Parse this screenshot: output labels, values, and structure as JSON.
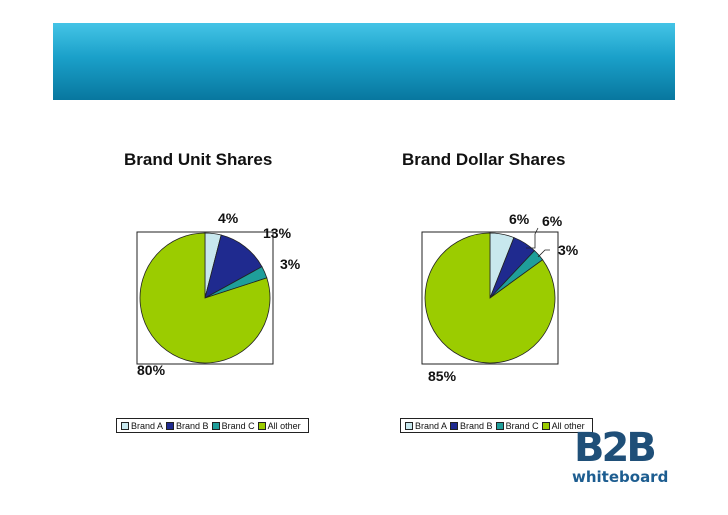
{
  "colors": {
    "brand_a": "#c8e8ee",
    "brand_b": "#1f2a8f",
    "brand_c": "#1f9e9a",
    "all_other": "#9bcc00"
  },
  "chart_data": [
    {
      "type": "pie",
      "title": "Brand Unit Shares",
      "categories": [
        "Brand A",
        "Brand B",
        "Brand C",
        "All other"
      ],
      "values": [
        4,
        13,
        3,
        80
      ],
      "labels": [
        "4%",
        "13%",
        "3%",
        "80%"
      ],
      "legend": "bottom"
    },
    {
      "type": "pie",
      "title": "Brand Dollar Shares",
      "categories": [
        "Brand A",
        "Brand B",
        "Brand C",
        "All other"
      ],
      "values": [
        6,
        6,
        3,
        85
      ],
      "labels": [
        "6%",
        "6%",
        "3%",
        "85%"
      ],
      "legend": "bottom"
    }
  ],
  "logo": {
    "mark": "B2B",
    "word": "whiteboard"
  }
}
